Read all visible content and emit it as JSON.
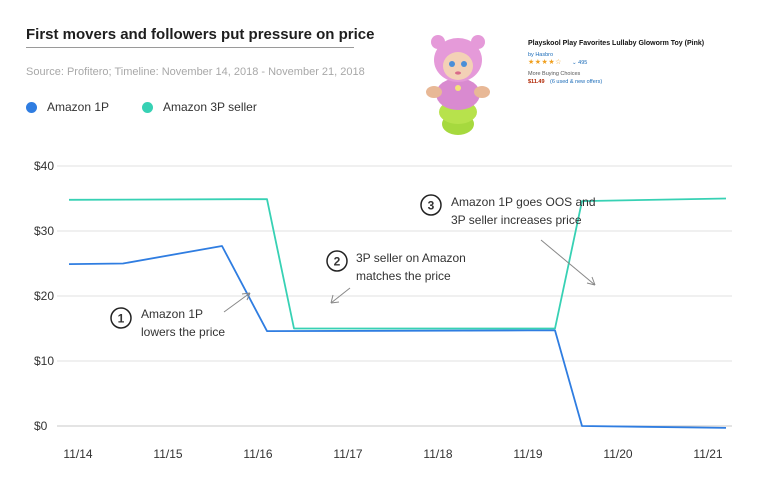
{
  "header": {
    "title": "First movers and followers put pressure on price",
    "source": "Source: Profitero; Timeline: November 14, 2018 - November 21, 2018"
  },
  "legend": [
    {
      "label": "Amazon 1P",
      "color": "#2f7de1"
    },
    {
      "label": "Amazon 3P seller",
      "color": "#37d1b4"
    }
  ],
  "product": {
    "title": "Playskool Play Favorites Lullaby Gloworm Toy (Pink)",
    "brand": "by Hasbro",
    "stars": "★★★★☆",
    "review_count": "⌄ 495",
    "more_choices": "More Buying Choices",
    "price": "$11.49",
    "offers": "(6 used & new offers)"
  },
  "chart_data": {
    "type": "line",
    "x_tick_labels": [
      "11/14",
      "11/15",
      "11/16",
      "11/17",
      "11/18",
      "11/19",
      "11/20",
      "11/21"
    ],
    "y_tick_labels": [
      "$0",
      "$10",
      "$20",
      "$30",
      "$40"
    ],
    "ylim": [
      0,
      40
    ],
    "xlim": [
      0,
      7.2
    ],
    "grid": true,
    "legend_position": "top-left",
    "series": [
      {
        "name": "Amazon 1P",
        "color": "#2f7de1",
        "points": [
          [
            -0.1,
            24.9
          ],
          [
            0.5,
            25.0
          ],
          [
            1.6,
            27.7
          ],
          [
            2.1,
            14.6
          ],
          [
            5.0,
            14.7
          ],
          [
            5.3,
            14.7
          ],
          [
            5.6,
            0.0
          ],
          [
            7.2,
            -0.3
          ]
        ]
      },
      {
        "name": "Amazon 3P seller",
        "color": "#37d1b4",
        "points": [
          [
            -0.1,
            34.8
          ],
          [
            1.8,
            34.9
          ],
          [
            2.1,
            34.9
          ],
          [
            2.4,
            15.0
          ],
          [
            5.0,
            15.0
          ],
          [
            5.3,
            15.0
          ],
          [
            5.6,
            34.6
          ],
          [
            7.2,
            35.0
          ]
        ]
      }
    ],
    "annotations": [
      {
        "number": "1",
        "text": [
          "Amazon 1P",
          "lowers the price"
        ]
      },
      {
        "number": "2",
        "text": [
          "3P seller on Amazon",
          "matches the price"
        ]
      },
      {
        "number": "3",
        "text": [
          "Amazon 1P goes OOS and",
          "3P seller increases price"
        ]
      }
    ]
  }
}
